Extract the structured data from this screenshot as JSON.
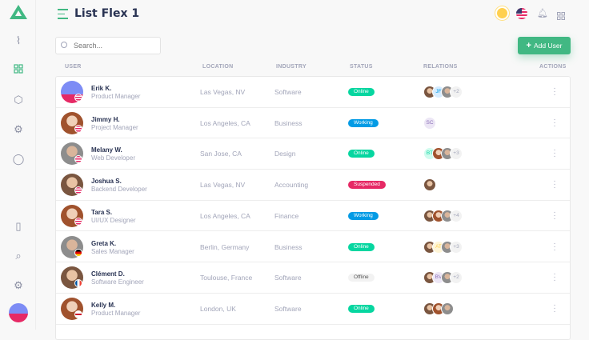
{
  "header": {
    "title": "List Flex 1"
  },
  "search": {
    "placeholder": "Search..."
  },
  "toolbar": {
    "add_user_label": "Add User"
  },
  "columns": [
    "USER",
    "LOCATION",
    "INDUSTRY",
    "STATUS",
    "RELATIONS",
    "ACTIONS"
  ],
  "colors": {
    "accent": "#41b883",
    "online": "#06d6a0",
    "working": "#039be5",
    "suspended": "#e62965",
    "offline": "#f2f2f2"
  },
  "rows": [
    {
      "name": "Erik K.",
      "position": "Product Manager",
      "location": "Las Vegas, NV",
      "industry": "Software",
      "status": "Online",
      "flag": "us",
      "relations": [
        {
          "type": "photo"
        },
        {
          "initials": "JF"
        },
        {
          "type": "photo"
        }
      ],
      "more": "+2"
    },
    {
      "name": "Jimmy H.",
      "position": "Project Manager",
      "location": "Los Angeles, CA",
      "industry": "Business",
      "status": "Working",
      "flag": "us",
      "relations": [
        {
          "initials": "SC"
        }
      ],
      "more": ""
    },
    {
      "name": "Melany W.",
      "position": "Web Developer",
      "location": "San Jose, CA",
      "industry": "Design",
      "status": "Online",
      "flag": "us",
      "relations": [
        {
          "initials": "BT"
        },
        {
          "type": "photo"
        },
        {
          "type": "photo"
        }
      ],
      "more": "+3"
    },
    {
      "name": "Joshua S.",
      "position": "Backend Developer",
      "location": "Las Vegas, NV",
      "industry": "Accounting",
      "status": "Suspended",
      "flag": "us",
      "relations": [
        {
          "type": "photo"
        }
      ],
      "more": ""
    },
    {
      "name": "Tara S.",
      "position": "UI/UX Designer",
      "location": "Los Angeles, CA",
      "industry": "Finance",
      "status": "Working",
      "flag": "us",
      "relations": [
        {
          "type": "photo"
        },
        {
          "type": "photo"
        },
        {
          "type": "photo"
        }
      ],
      "more": "+4"
    },
    {
      "name": "Greta K.",
      "position": "Sales Manager",
      "location": "Berlin, Germany",
      "industry": "Business",
      "status": "Online",
      "flag": "de",
      "relations": [
        {
          "type": "photo"
        },
        {
          "initials": "AT"
        },
        {
          "type": "photo"
        }
      ],
      "more": "+3"
    },
    {
      "name": "Clément D.",
      "position": "Software Engineer",
      "location": "Toulouse, France",
      "industry": "Software",
      "status": "Offline",
      "flag": "fr",
      "relations": [
        {
          "type": "photo"
        },
        {
          "initials": "BV"
        },
        {
          "type": "photo"
        }
      ],
      "more": "+2"
    },
    {
      "name": "Kelly M.",
      "position": "Product Manager",
      "location": "London, UK",
      "industry": "Software",
      "status": "Online",
      "flag": "gb",
      "relations": [
        {
          "type": "photo"
        },
        {
          "type": "photo"
        },
        {
          "type": "photo"
        }
      ],
      "more": ""
    }
  ]
}
